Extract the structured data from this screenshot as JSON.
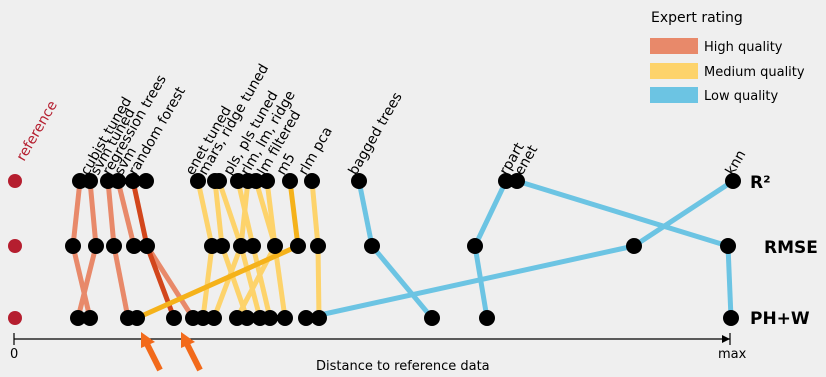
{
  "legend": {
    "title": "Expert rating",
    "items": [
      {
        "label": "High quality",
        "color": "#e8896a"
      },
      {
        "label": "Medium quality",
        "color": "#fdd36b"
      },
      {
        "label": "Low quality",
        "color": "#6cc4e3"
      }
    ]
  },
  "metrics": [
    "R²",
    "RMSE",
    "PH+W"
  ],
  "reference_label": "reference",
  "axis": {
    "start": "0",
    "end": "max",
    "label": "Distance to reference data"
  },
  "colors": {
    "reference": "#b51e2f",
    "node": "#000000",
    "high": "#e8896a",
    "high_emph": "#d2461c",
    "medium": "#fdd36b",
    "medium_emph": "#f5b21a",
    "low": "#6cc4e3",
    "arrow": "#f26a1b"
  },
  "method_labels": [
    "cubist tuned",
    "svm tuned",
    "regression trees",
    "svm",
    "random forest",
    "enet tuned",
    "mars, ridge tuned",
    "pls, pls tuned",
    "rlm, lm, ridge",
    "lm filtered",
    "m5",
    "rlm pca",
    "bagged trees",
    "rpart",
    "enet",
    "knn"
  ]
}
